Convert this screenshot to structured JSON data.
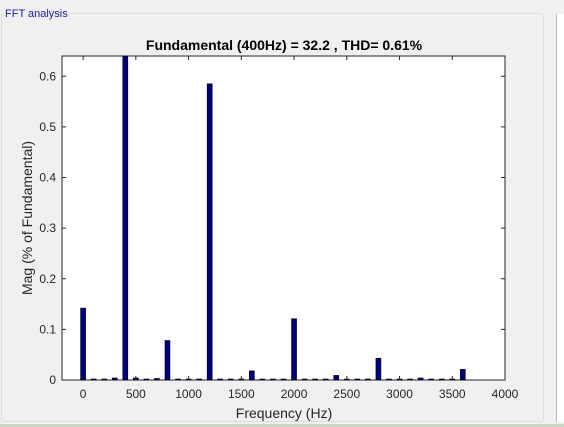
{
  "panel": {
    "title": "FFT analysis"
  },
  "chart_data": {
    "type": "bar",
    "title": "Fundamental (400Hz) = 32.2 , THD= 0.61%",
    "xlabel": "Frequency (Hz)",
    "ylabel": "Mag (% of Fundamental)",
    "xlim": [
      -200,
      4000
    ],
    "ylim": [
      0,
      0.64
    ],
    "xticks": [
      0,
      500,
      1000,
      1500,
      2000,
      2500,
      3000,
      3500,
      4000
    ],
    "yticks": [
      0,
      0.1,
      0.2,
      0.3,
      0.4,
      0.5,
      0.6
    ],
    "grid": false,
    "bar_color": "#00007f",
    "x": [
      0,
      100,
      200,
      300,
      400,
      500,
      600,
      700,
      800,
      900,
      1000,
      1100,
      1200,
      1300,
      1400,
      1500,
      1600,
      1700,
      1800,
      1900,
      2000,
      2100,
      2200,
      2300,
      2400,
      2500,
      2600,
      2700,
      2800,
      2900,
      3000,
      3100,
      3200,
      3300,
      3400,
      3500,
      3600
    ],
    "values": [
      0.142,
      0.002,
      0.002,
      0.004,
      0.64,
      0.004,
      0.001,
      0.003,
      0.078,
      0.001,
      0.001,
      0.001,
      0.585,
      0.001,
      0.001,
      0.001,
      0.018,
      0.001,
      0.001,
      0.001,
      0.121,
      0.001,
      0.001,
      0.001,
      0.009,
      0.001,
      0.001,
      0.001,
      0.043,
      0.001,
      0.001,
      0.001,
      0.004,
      0.001,
      0.001,
      0.001,
      0.021
    ]
  }
}
